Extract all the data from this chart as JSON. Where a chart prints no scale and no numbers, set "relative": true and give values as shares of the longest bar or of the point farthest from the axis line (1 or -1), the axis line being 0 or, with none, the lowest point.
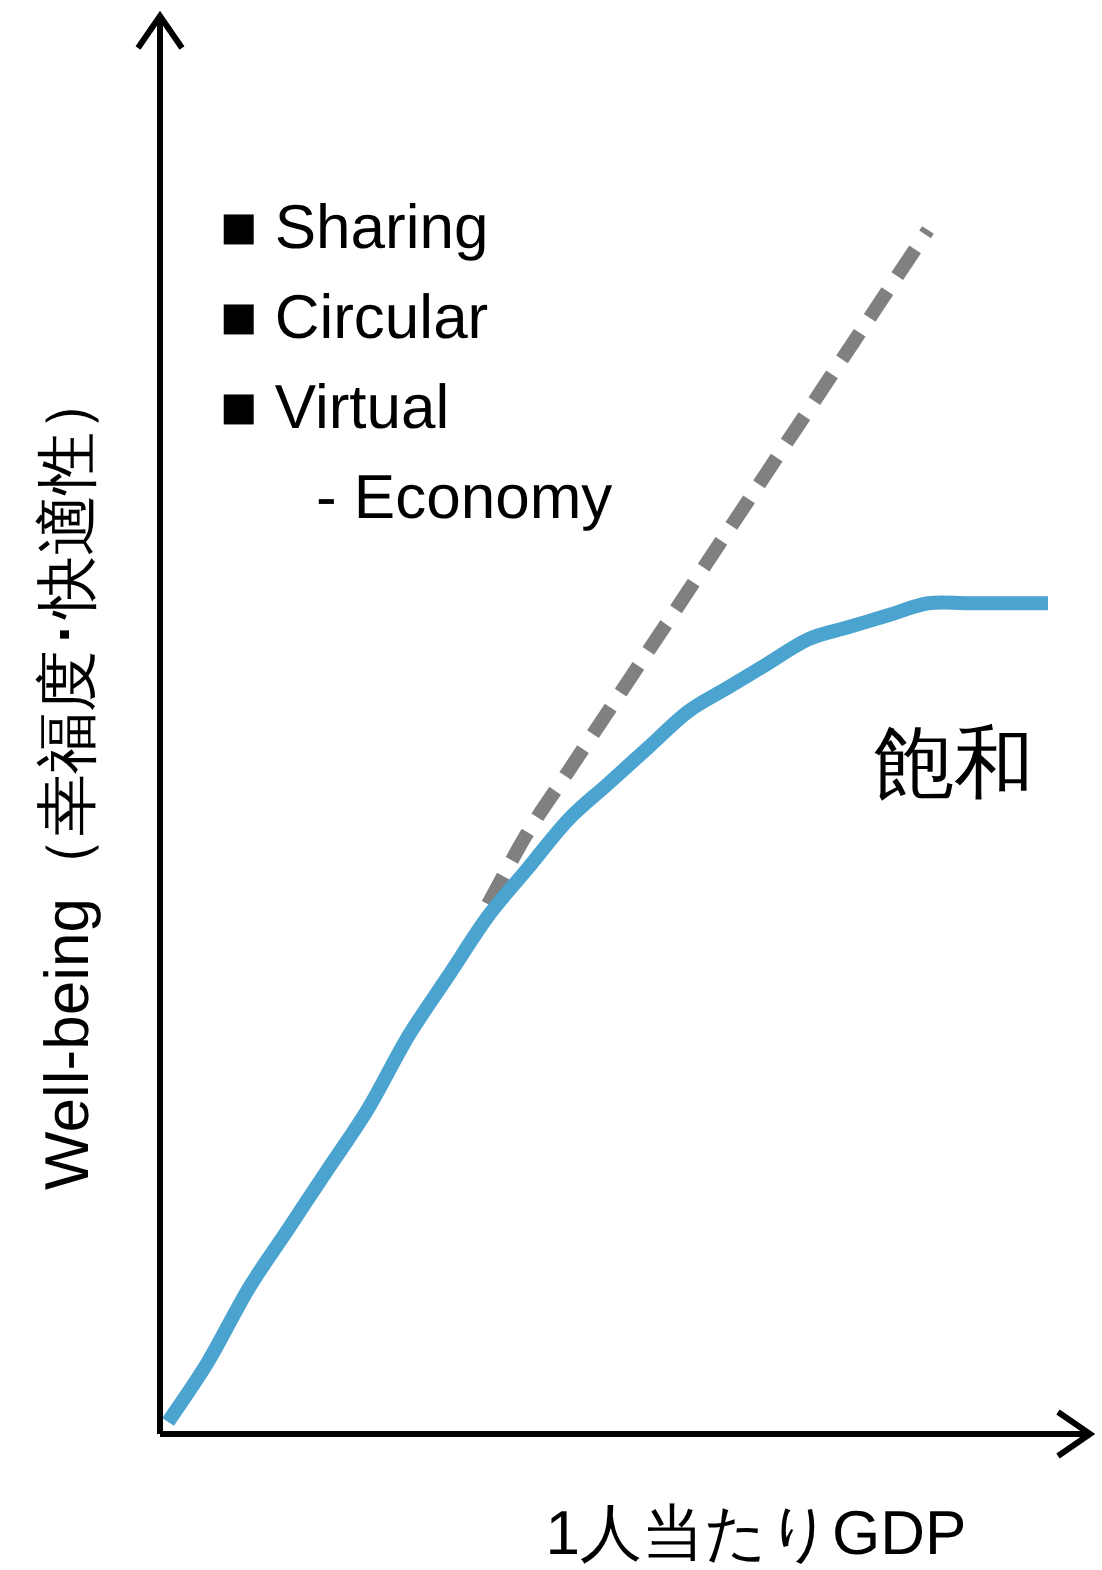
{
  "chart_data": {
    "type": "line",
    "relative": true,
    "xlabel": "1人当たりGDP",
    "ylabel": "Well-being（幸福度･快適性）",
    "categories": [
      null,
      null,
      null,
      null,
      null,
      null,
      null,
      null,
      null,
      null,
      null,
      null,
      null,
      null,
      null,
      null,
      null,
      null,
      null,
      null,
      null,
      null,
      null
    ],
    "series": [
      {
        "color": "#808080",
        "line_style": "dashed",
        "values": [
          null,
          null,
          null,
          null,
          null,
          null,
          null,
          null,
          0.44,
          0.5,
          0.55,
          0.6,
          0.65,
          0.7,
          0.75,
          0.8,
          0.85,
          0.9,
          0.95,
          1.0,
          null,
          null,
          null
        ]
      },
      {
        "color": "#4ba3d0",
        "line_style": "solid",
        "values": [
          0.01,
          0.06,
          0.12,
          0.17,
          0.22,
          0.27,
          0.33,
          0.38,
          0.43,
          0.47,
          0.51,
          0.54,
          0.57,
          0.6,
          0.62,
          0.64,
          0.66,
          0.67,
          0.68,
          0.69,
          0.69,
          0.69,
          0.69
        ]
      }
    ],
    "annotations": [
      "■ Sharing",
      "■ Circular",
      "■ Virtual",
      "- Economy",
      "飽和"
    ]
  }
}
